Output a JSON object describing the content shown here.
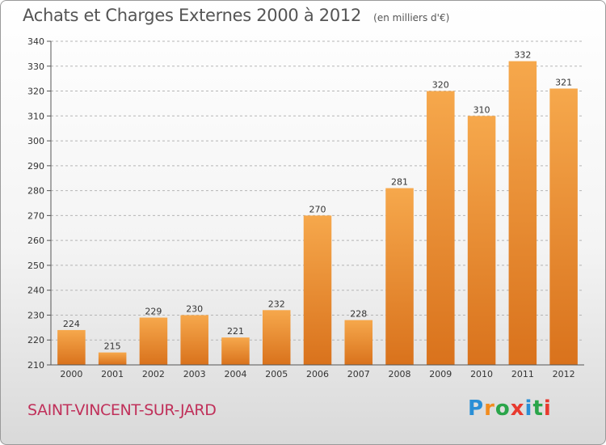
{
  "header": {
    "title": "Achats et Charges Externes 2000 à 2012",
    "unit": "(en milliers d'€)"
  },
  "footer": {
    "commune": "SAINT-VINCENT-SUR-JARD",
    "logo_letters": [
      "P",
      "r",
      "o",
      "x",
      "i",
      "t",
      "i"
    ],
    "logo_colors": [
      "#2a8fd6",
      "#f28c1e",
      "#2aa54a",
      "#e83a2f",
      "#2a8fd6",
      "#2aa54a",
      "#e83a2f"
    ]
  },
  "colors": {
    "bar_light": "#f6a84c",
    "bar_dark": "#d9721c",
    "grid": "#b5b5b5",
    "axis": "#555555"
  },
  "chart_data": {
    "type": "bar",
    "title": "Achats et Charges Externes 2000 à 2012",
    "subtitle": "(en milliers d'€)",
    "categories": [
      "2000",
      "2001",
      "2002",
      "2003",
      "2004",
      "2005",
      "2006",
      "2007",
      "2008",
      "2009",
      "2010",
      "2011",
      "2012"
    ],
    "values": [
      224,
      215,
      229,
      230,
      221,
      232,
      270,
      228,
      281,
      320,
      310,
      332,
      321
    ],
    "ylim": [
      210,
      340
    ],
    "yticks": [
      210,
      220,
      230,
      240,
      250,
      260,
      270,
      280,
      290,
      300,
      310,
      320,
      330,
      340
    ],
    "grid": true,
    "grid_style": "dashed-horizontal",
    "data_labels": true
  }
}
